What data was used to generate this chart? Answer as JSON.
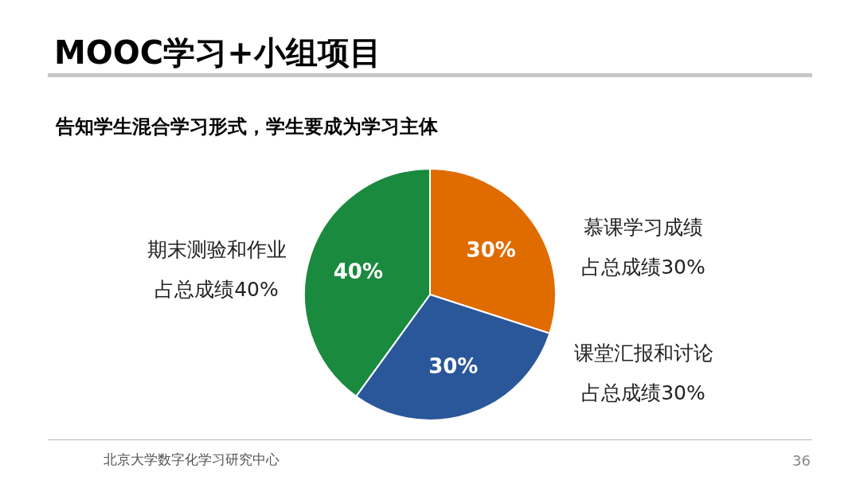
{
  "chart_data": {
    "type": "pie",
    "title": "MOOC学习+小组项目",
    "subtitle": "告知学生混合学习形式，学生要成为学习主体",
    "categories": [
      "慕课学习成绩",
      "课堂汇报和讨论",
      "期末测验和作业"
    ],
    "values": [
      30,
      30,
      40
    ],
    "value_labels": [
      "30%",
      "30%",
      "40%"
    ],
    "colors": [
      "#e06c00",
      "#2a579a",
      "#1a8a3e"
    ],
    "annotations": [
      "占总成绩30%",
      "占总成绩30%",
      "占总成绩40%",
      "北京大学数字化学习研究中心",
      "36"
    ]
  }
}
